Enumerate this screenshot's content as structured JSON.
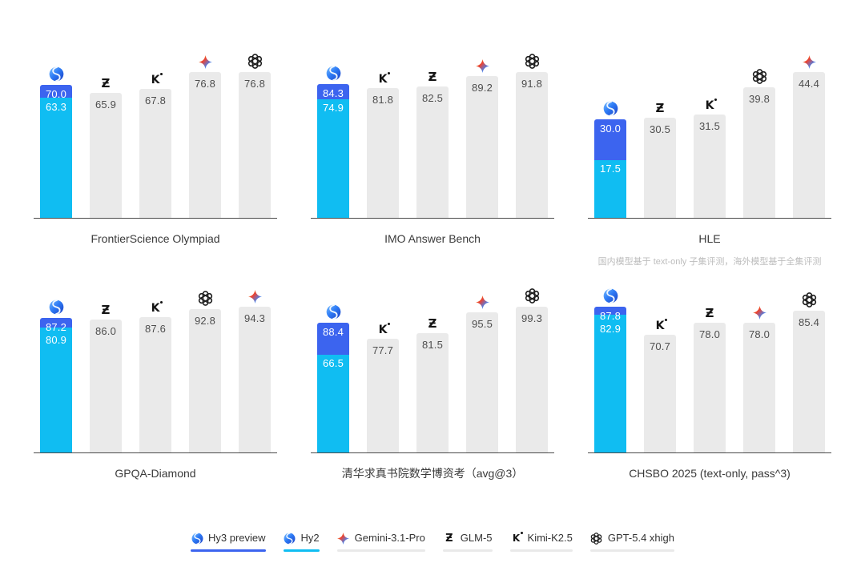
{
  "colors": {
    "background": "#ffffff",
    "hy3_blue": "#3c64ef",
    "hy2_cyan": "#10bdf2",
    "bar_gray": "#eaeaea",
    "bar_label_dark": "#4e4e4e",
    "bar_label_light": "#ffffff",
    "axis_baseline": "#4a4a4a",
    "title_text": "#3a3a3a",
    "footnote_text": "#bdbdbd",
    "legend_text": "#333333",
    "legend_underline_gray": "#e9e9e9"
  },
  "chart_data": [
    {
      "type": "bar",
      "title": "FrontierScience Olympiad",
      "footnote": "",
      "ylim": [
        0,
        76.8
      ],
      "bars": [
        {
          "model": "Hy3 preview / Hy2",
          "icon": "hy-logo-icon",
          "kind": "overlay",
          "values": {
            "hy3_preview": 70.0,
            "hy2": 63.3
          },
          "labels": [
            "70.0",
            "63.3"
          ]
        },
        {
          "model": "GLM-5",
          "icon": "glm-logo-icon",
          "kind": "single",
          "value": 65.9,
          "label": "65.9"
        },
        {
          "model": "Kimi-K2.5",
          "icon": "kimi-logo-icon",
          "kind": "single",
          "value": 67.8,
          "label": "67.8"
        },
        {
          "model": "Gemini-3.1-Pro",
          "icon": "gemini-logo-icon",
          "kind": "single",
          "value": 76.8,
          "label": "76.8"
        },
        {
          "model": "GPT-5.4 xhigh",
          "icon": "gpt-logo-icon",
          "kind": "single",
          "value": 76.8,
          "label": "76.8"
        }
      ]
    },
    {
      "type": "bar",
      "title": "IMO Answer Bench",
      "footnote": "",
      "ylim": [
        0,
        91.8
      ],
      "bars": [
        {
          "model": "Hy3 preview / Hy2",
          "icon": "hy-logo-icon",
          "kind": "overlay",
          "values": {
            "hy3_preview": 84.3,
            "hy2": 74.9
          },
          "labels": [
            "84.3",
            "74.9"
          ]
        },
        {
          "model": "Kimi-K2.5",
          "icon": "kimi-logo-icon",
          "kind": "single",
          "value": 81.8,
          "label": "81.8"
        },
        {
          "model": "GLM-5",
          "icon": "glm-logo-icon",
          "kind": "single",
          "value": 82.5,
          "label": "82.5"
        },
        {
          "model": "Gemini-3.1-Pro",
          "icon": "gemini-logo-icon",
          "kind": "single",
          "value": 89.2,
          "label": "89.2"
        },
        {
          "model": "GPT-5.4 xhigh",
          "icon": "gpt-logo-icon",
          "kind": "single",
          "value": 91.8,
          "label": "91.8"
        }
      ]
    },
    {
      "type": "bar",
      "title": "HLE",
      "footnote": "国内模型基于 text-only 子集评测，海外模型基于全集评测",
      "ylim": [
        0,
        44.4
      ],
      "bars": [
        {
          "model": "Hy3 preview / Hy2",
          "icon": "hy-logo-icon",
          "kind": "overlay",
          "values": {
            "hy3_preview": 30.0,
            "hy2": 17.5
          },
          "labels": [
            "30.0",
            "17.5"
          ]
        },
        {
          "model": "GLM-5",
          "icon": "glm-logo-icon",
          "kind": "single",
          "value": 30.5,
          "label": "30.5"
        },
        {
          "model": "Kimi-K2.5",
          "icon": "kimi-logo-icon",
          "kind": "single",
          "value": 31.5,
          "label": "31.5"
        },
        {
          "model": "GPT-5.4 xhigh",
          "icon": "gpt-logo-icon",
          "kind": "single",
          "value": 39.8,
          "label": "39.8"
        },
        {
          "model": "Gemini-3.1-Pro",
          "icon": "gemini-logo-icon",
          "kind": "single",
          "value": 44.4,
          "label": "44.4"
        }
      ]
    },
    {
      "type": "bar",
      "title": "GPQA-Diamond",
      "footnote": "",
      "ylim": [
        0,
        94.3
      ],
      "bars": [
        {
          "model": "Hy3 preview / Hy2",
          "icon": "hy-logo-icon",
          "kind": "overlay",
          "values": {
            "hy3_preview": 87.2,
            "hy2": 80.9
          },
          "labels": [
            "87.2",
            "80.9"
          ]
        },
        {
          "model": "GLM-5",
          "icon": "glm-logo-icon",
          "kind": "single",
          "value": 86.0,
          "label": "86.0"
        },
        {
          "model": "Kimi-K2.5",
          "icon": "kimi-logo-icon",
          "kind": "single",
          "value": 87.6,
          "label": "87.6"
        },
        {
          "model": "GPT-5.4 xhigh",
          "icon": "gpt-logo-icon",
          "kind": "single",
          "value": 92.8,
          "label": "92.8"
        },
        {
          "model": "Gemini-3.1-Pro",
          "icon": "gemini-logo-icon",
          "kind": "single",
          "value": 94.3,
          "label": "94.3"
        }
      ]
    },
    {
      "type": "bar",
      "title": "清华求真书院数学博资考（avg@3）",
      "footnote": "",
      "ylim": [
        0,
        99.3
      ],
      "bars": [
        {
          "model": "Hy3 preview / Hy2",
          "icon": "hy-logo-icon",
          "kind": "overlay",
          "values": {
            "hy3_preview": 88.4,
            "hy2": 66.5
          },
          "labels": [
            "88.4",
            "66.5"
          ]
        },
        {
          "model": "Kimi-K2.5",
          "icon": "kimi-logo-icon",
          "kind": "single",
          "value": 77.7,
          "label": "77.7"
        },
        {
          "model": "GLM-5",
          "icon": "glm-logo-icon",
          "kind": "single",
          "value": 81.5,
          "label": "81.5"
        },
        {
          "model": "Gemini-3.1-Pro",
          "icon": "gemini-logo-icon",
          "kind": "single",
          "value": 95.5,
          "label": "95.5"
        },
        {
          "model": "GPT-5.4 xhigh",
          "icon": "gpt-logo-icon",
          "kind": "single",
          "value": 99.3,
          "label": "99.3"
        }
      ]
    },
    {
      "type": "bar",
      "title": "CHSBO 2025 (text-only, pass^3)",
      "footnote": "",
      "ylim": [
        0,
        87.8
      ],
      "bars": [
        {
          "model": "Hy3 preview / Hy2",
          "icon": "hy-logo-icon",
          "kind": "overlay",
          "values": {
            "hy3_preview": 87.8,
            "hy2": 82.9
          },
          "labels": [
            "87.8",
            "82.9"
          ]
        },
        {
          "model": "Kimi-K2.5",
          "icon": "kimi-logo-icon",
          "kind": "single",
          "value": 70.7,
          "label": "70.7"
        },
        {
          "model": "GLM-5",
          "icon": "glm-logo-icon",
          "kind": "single",
          "value": 78.0,
          "label": "78.0"
        },
        {
          "model": "Gemini-3.1-Pro",
          "icon": "gemini-logo-icon",
          "kind": "single",
          "value": 78.0,
          "label": "78.0"
        },
        {
          "model": "GPT-5.4 xhigh",
          "icon": "gpt-logo-icon",
          "kind": "single",
          "value": 85.4,
          "label": "85.4"
        }
      ]
    }
  ],
  "legend": {
    "items": [
      {
        "label": "Hy3 preview",
        "icon": "hy-logo-icon",
        "underline_color": "#3c64ef"
      },
      {
        "label": "Hy2",
        "icon": "hy-logo-icon",
        "underline_color": "#10bdf2"
      },
      {
        "label": "Gemini-3.1-Pro",
        "icon": "gemini-logo-icon",
        "underline_color": "#e9e9e9"
      },
      {
        "label": "GLM-5",
        "icon": "glm-logo-icon",
        "underline_color": "#e9e9e9"
      },
      {
        "label": "Kimi-K2.5",
        "icon": "kimi-logo-icon",
        "underline_color": "#e9e9e9"
      },
      {
        "label": "GPT-5.4 xhigh",
        "icon": "gpt-logo-icon",
        "underline_color": "#e9e9e9"
      }
    ]
  }
}
